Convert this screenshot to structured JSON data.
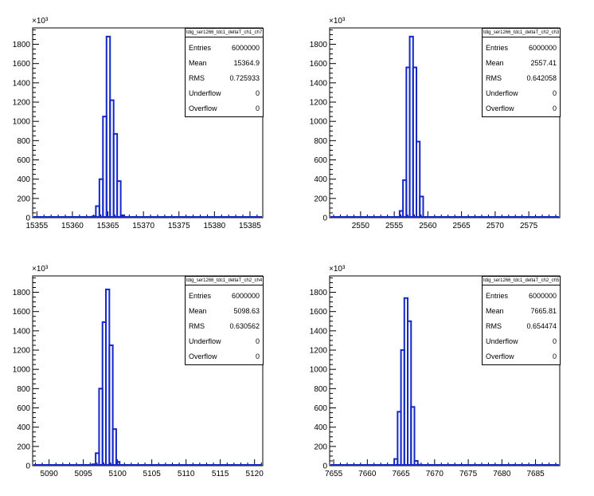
{
  "chart_data": [
    {
      "type": "bar",
      "stats_title": "tdig_ser1266_tdc1_deltaT_ch1_ch7",
      "y_exponent_label": "×10³",
      "xlim": [
        15354.4,
        15386.8
      ],
      "ylim": [
        0,
        1970
      ],
      "x_ticks": [
        15355,
        15360,
        15365,
        15370,
        15375,
        15380,
        15385
      ],
      "y_ticks": [
        0,
        200,
        400,
        600,
        800,
        1000,
        1200,
        1400,
        1600,
        1800
      ],
      "bins": [
        15362.8,
        15363.3,
        15363.8,
        15364.3,
        15364.8,
        15365.3,
        15365.8,
        15366.3,
        15366.8
      ],
      "values": [
        15,
        120,
        400,
        1050,
        1880,
        1220,
        870,
        380,
        25
      ],
      "stats": [
        {
          "label": "Entries",
          "value": "6000000"
        },
        {
          "label": "Mean",
          "value": "15364.9"
        },
        {
          "label": "RMS",
          "value": "0.725933"
        },
        {
          "label": "Underflow",
          "value": "0"
        },
        {
          "label": "Overflow",
          "value": "0"
        }
      ]
    },
    {
      "type": "bar",
      "stats_title": "tdig_ser1266_tdc1_deltaT_ch2_ch3",
      "y_exponent_label": "×10³",
      "xlim": [
        2545.4,
        2579.6
      ],
      "ylim": [
        0,
        1970
      ],
      "x_ticks": [
        2550,
        2555,
        2560,
        2565,
        2570,
        2575
      ],
      "y_ticks": [
        0,
        200,
        400,
        600,
        800,
        1000,
        1200,
        1400,
        1600,
        1800
      ],
      "bins": [
        2555.8,
        2556.3,
        2556.8,
        2557.3,
        2557.8,
        2558.3,
        2558.8
      ],
      "values": [
        70,
        390,
        1560,
        1880,
        1560,
        790,
        220
      ],
      "stats": [
        {
          "label": "Entries",
          "value": "6000000"
        },
        {
          "label": "Mean",
          "value": "2557.41"
        },
        {
          "label": "RMS",
          "value": "0.642058"
        },
        {
          "label": "Underflow",
          "value": "0"
        },
        {
          "label": "Overflow",
          "value": "0"
        }
      ]
    },
    {
      "type": "bar",
      "stats_title": "tdig_ser1266_tdc1_deltaT_ch2_ch4",
      "y_exponent_label": "×10³",
      "xlim": [
        5087.6,
        5121.2
      ],
      "ylim": [
        0,
        1970
      ],
      "x_ticks": [
        5090,
        5095,
        5100,
        5105,
        5110,
        5115,
        5120
      ],
      "y_ticks": [
        0,
        200,
        400,
        600,
        800,
        1000,
        1200,
        1400,
        1600,
        1800
      ],
      "bins": [
        5096.3,
        5096.8,
        5097.3,
        5097.8,
        5098.3,
        5098.8,
        5099.3,
        5099.8
      ],
      "values": [
        15,
        130,
        800,
        1490,
        1830,
        1250,
        380,
        40
      ],
      "stats": [
        {
          "label": "Entries",
          "value": "6000000"
        },
        {
          "label": "Mean",
          "value": "5098.63"
        },
        {
          "label": "RMS",
          "value": "0.630562"
        },
        {
          "label": "Underflow",
          "value": "0"
        },
        {
          "label": "Overflow",
          "value": "0"
        }
      ]
    },
    {
      "type": "bar",
      "stats_title": "tdig_ser1266_tdc1_deltaT_ch2_ch5",
      "y_exponent_label": "×10³",
      "xlim": [
        7654.4,
        7688.6
      ],
      "ylim": [
        0,
        1970
      ],
      "x_ticks": [
        7655,
        7660,
        7665,
        7670,
        7675,
        7680,
        7685
      ],
      "y_ticks": [
        0,
        200,
        400,
        600,
        800,
        1000,
        1200,
        1400,
        1600,
        1800
      ],
      "bins": [
        7664.0,
        7664.5,
        7665.0,
        7665.5,
        7666.0,
        7666.5,
        7667.0,
        7667.5
      ],
      "values": [
        70,
        560,
        1200,
        1740,
        1500,
        610,
        50,
        10
      ],
      "stats": [
        {
          "label": "Entries",
          "value": "6000000"
        },
        {
          "label": "Mean",
          "value": "7665.81"
        },
        {
          "label": "RMS",
          "value": "0.654474"
        },
        {
          "label": "Underflow",
          "value": "0"
        },
        {
          "label": "Overflow",
          "value": "0"
        }
      ]
    }
  ],
  "style": {
    "line_color": "#1427c8",
    "frame_color": "#000000",
    "background": "#ffffff"
  }
}
